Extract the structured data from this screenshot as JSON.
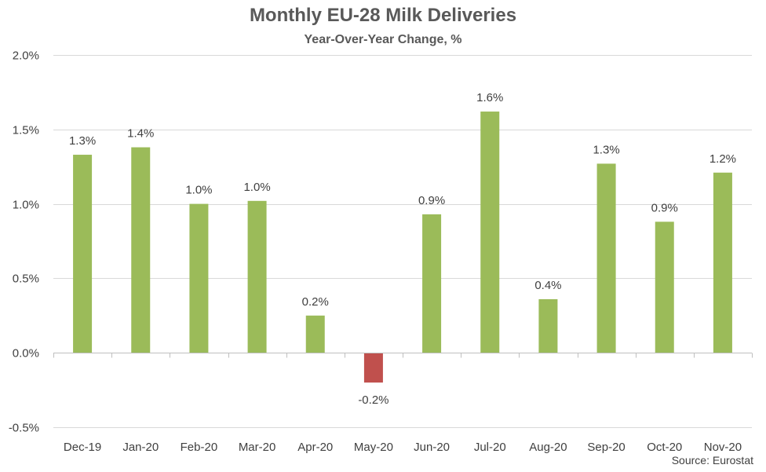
{
  "chart_data": {
    "type": "bar",
    "title": "Monthly EU-28 Milk Deliveries",
    "subtitle": "Year-Over-Year Change, %",
    "xlabel": "",
    "ylabel": "",
    "categories": [
      "Dec-19",
      "Jan-20",
      "Feb-20",
      "Mar-20",
      "Apr-20",
      "May-20",
      "Jun-20",
      "Jul-20",
      "Aug-20",
      "Sep-20",
      "Oct-20",
      "Nov-20"
    ],
    "values": [
      1.33,
      1.38,
      1.0,
      1.02,
      0.25,
      -0.2,
      0.93,
      1.62,
      0.36,
      1.27,
      0.88,
      1.21
    ],
    "data_labels": [
      "1.3%",
      "1.4%",
      "1.0%",
      "1.0%",
      "0.2%",
      "-0.2%",
      "0.9%",
      "1.6%",
      "0.4%",
      "1.3%",
      "0.9%",
      "1.2%"
    ],
    "ylim": [
      -0.5,
      2.0
    ],
    "yticks": [
      -0.5,
      0.0,
      0.5,
      1.0,
      1.5,
      2.0
    ],
    "ytick_labels": [
      "-0.5%",
      "0.0%",
      "0.5%",
      "1.0%",
      "1.5%",
      "2.0%"
    ],
    "grid": true,
    "legend": "none",
    "colors": {
      "positive": "#9BBB59",
      "negative": "#C0504D",
      "grid": "#D9D9D9",
      "axis": "#BFBFBF"
    },
    "source": "Source: Eurostat"
  }
}
